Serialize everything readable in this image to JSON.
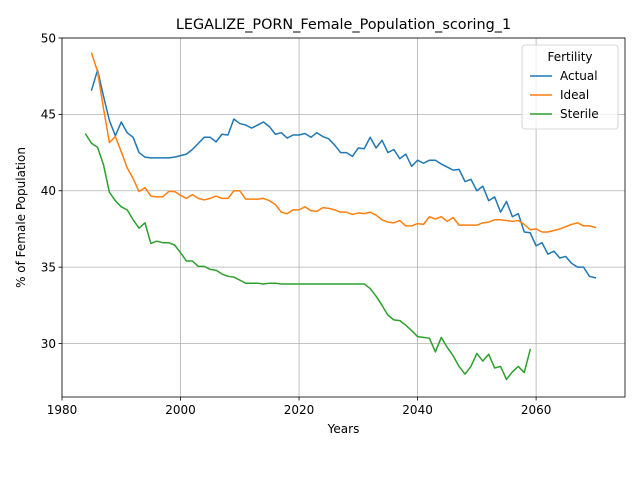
{
  "chart_data": {
    "type": "line",
    "title": "LEGALIZE_PORN_Female_Population_scoring_1",
    "xlabel": "Years",
    "ylabel": "% of Female Population",
    "xlim": [
      1980,
      2075
    ],
    "ylim": [
      26.5,
      50
    ],
    "xticks": [
      1980,
      2000,
      2020,
      2040,
      2060
    ],
    "yticks": [
      30,
      35,
      40,
      45,
      50
    ],
    "grid": true,
    "legend": {
      "title": "Fertility",
      "placement": "top-right"
    },
    "series": [
      {
        "name": "Actual",
        "color": "#1f77b4",
        "x": [
          1985,
          1986,
          1987,
          1988,
          1989,
          1990,
          1991,
          1992,
          1993,
          1994,
          1995,
          1996,
          1997,
          1998,
          1999,
          2000,
          2001,
          2002,
          2003,
          2004,
          2005,
          2006,
          2007,
          2008,
          2009,
          2010,
          2011,
          2012,
          2013,
          2014,
          2015,
          2016,
          2017,
          2018,
          2019,
          2020,
          2021,
          2022,
          2023,
          2024,
          2025,
          2026,
          2027,
          2028,
          2029,
          2030,
          2031,
          2032,
          2033,
          2034,
          2035,
          2036,
          2037,
          2038,
          2039,
          2040,
          2041,
          2042,
          2043,
          2044,
          2045,
          2046,
          2047,
          2048,
          2049,
          2050,
          2051,
          2052,
          2053,
          2054,
          2055,
          2056,
          2057,
          2058,
          2059,
          2060,
          2061,
          2062,
          2063,
          2064,
          2065,
          2066,
          2067,
          2068,
          2069,
          2070
        ],
        "y": [
          46.6,
          47.9,
          46.2,
          44.6,
          43.6,
          44.5,
          43.8,
          43.5,
          42.5,
          42.2,
          42.15,
          42.15,
          42.15,
          42.15,
          42.2,
          42.3,
          42.4,
          42.7,
          43.1,
          43.5,
          43.5,
          43.2,
          43.7,
          43.65,
          44.7,
          44.4,
          44.3,
          44.1,
          44.3,
          44.5,
          44.2,
          43.7,
          43.8,
          43.45,
          43.65,
          43.65,
          43.75,
          43.5,
          43.8,
          43.55,
          43.4,
          43.0,
          42.5,
          42.5,
          42.25,
          42.8,
          42.75,
          43.5,
          42.8,
          43.3,
          42.5,
          42.7,
          42.1,
          42.4,
          41.6,
          42.0,
          41.8,
          42.0,
          42.0,
          41.75,
          41.55,
          41.35,
          41.4,
          40.6,
          40.75,
          40.0,
          40.3,
          39.35,
          39.6,
          38.6,
          39.3,
          38.3,
          38.5,
          37.3,
          37.25,
          36.4,
          36.6,
          35.85,
          36.05,
          35.6,
          35.7,
          35.25,
          35.0,
          35.0,
          34.4,
          34.3
        ]
      },
      {
        "name": "Ideal",
        "color": "#ff7f0e",
        "x": [
          1985,
          1986,
          1987,
          1988,
          1989,
          1990,
          1991,
          1992,
          1993,
          1994,
          1995,
          1996,
          1997,
          1998,
          1999,
          2000,
          2001,
          2002,
          2003,
          2004,
          2005,
          2006,
          2007,
          2008,
          2009,
          2010,
          2011,
          2012,
          2013,
          2014,
          2015,
          2016,
          2017,
          2018,
          2019,
          2020,
          2021,
          2022,
          2023,
          2024,
          2025,
          2026,
          2027,
          2028,
          2029,
          2030,
          2031,
          2032,
          2033,
          2034,
          2035,
          2036,
          2037,
          2038,
          2039,
          2040,
          2041,
          2042,
          2043,
          2044,
          2045,
          2046,
          2047,
          2048,
          2049,
          2050,
          2051,
          2052,
          2053,
          2054,
          2055,
          2056,
          2057,
          2058,
          2059,
          2060,
          2061,
          2062,
          2063,
          2064,
          2065,
          2066,
          2067,
          2068,
          2069,
          2070
        ],
        "y": [
          49.0,
          47.8,
          45.4,
          43.15,
          43.55,
          42.55,
          41.5,
          40.8,
          39.95,
          40.2,
          39.65,
          39.6,
          39.6,
          39.95,
          39.95,
          39.7,
          39.5,
          39.75,
          39.5,
          39.4,
          39.5,
          39.65,
          39.5,
          39.5,
          40.0,
          40.0,
          39.45,
          39.45,
          39.45,
          39.5,
          39.35,
          39.1,
          38.6,
          38.5,
          38.75,
          38.75,
          38.95,
          38.7,
          38.65,
          38.9,
          38.85,
          38.75,
          38.6,
          38.6,
          38.45,
          38.55,
          38.5,
          38.6,
          38.4,
          38.1,
          37.95,
          37.9,
          38.05,
          37.7,
          37.7,
          37.85,
          37.8,
          38.3,
          38.15,
          38.3,
          38.0,
          38.25,
          37.75,
          37.75,
          37.75,
          37.75,
          37.9,
          37.95,
          38.1,
          38.1,
          38.05,
          38.0,
          38.05,
          37.8,
          37.45,
          37.5,
          37.3,
          37.3,
          37.4,
          37.5,
          37.65,
          37.8,
          37.9,
          37.7,
          37.7,
          37.6
        ]
      },
      {
        "name": "Sterile",
        "color": "#2ca02c",
        "x": [
          1984,
          1985,
          1986,
          1987,
          1988,
          1989,
          1990,
          1991,
          1992,
          1993,
          1994,
          1995,
          1996,
          1997,
          1998,
          1999,
          2000,
          2001,
          2002,
          2003,
          2004,
          2005,
          2006,
          2007,
          2008,
          2009,
          2010,
          2011,
          2012,
          2013,
          2014,
          2015,
          2016,
          2017,
          2018,
          2019,
          2020,
          2021,
          2022,
          2023,
          2024,
          2025,
          2026,
          2027,
          2028,
          2029,
          2030,
          2031,
          2032,
          2033,
          2034,
          2035,
          2036,
          2037,
          2038,
          2039,
          2040,
          2041,
          2042,
          2043,
          2044,
          2045,
          2046,
          2047,
          2048,
          2049,
          2050,
          2051,
          2052,
          2053,
          2054,
          2055,
          2056,
          2057,
          2058,
          2059
        ],
        "y": [
          43.7,
          43.1,
          42.85,
          41.7,
          39.9,
          39.35,
          38.95,
          38.75,
          38.1,
          37.55,
          37.9,
          36.55,
          36.7,
          36.6,
          36.6,
          36.45,
          35.95,
          35.4,
          35.4,
          35.05,
          35.05,
          34.85,
          34.8,
          34.55,
          34.4,
          34.35,
          34.15,
          33.95,
          33.95,
          33.95,
          33.9,
          33.95,
          33.95,
          33.9,
          33.9,
          33.9,
          33.9,
          33.9,
          33.9,
          33.9,
          33.9,
          33.9,
          33.9,
          33.9,
          33.9,
          33.9,
          33.9,
          33.9,
          33.6,
          33.1,
          32.5,
          31.85,
          31.55,
          31.5,
          31.2,
          30.85,
          30.45,
          30.4,
          30.35,
          29.45,
          30.4,
          29.75,
          29.2,
          28.5,
          28.0,
          28.5,
          29.35,
          28.85,
          29.3,
          28.4,
          28.5,
          27.65,
          28.15,
          28.5,
          28.1,
          29.6
        ]
      }
    ]
  }
}
